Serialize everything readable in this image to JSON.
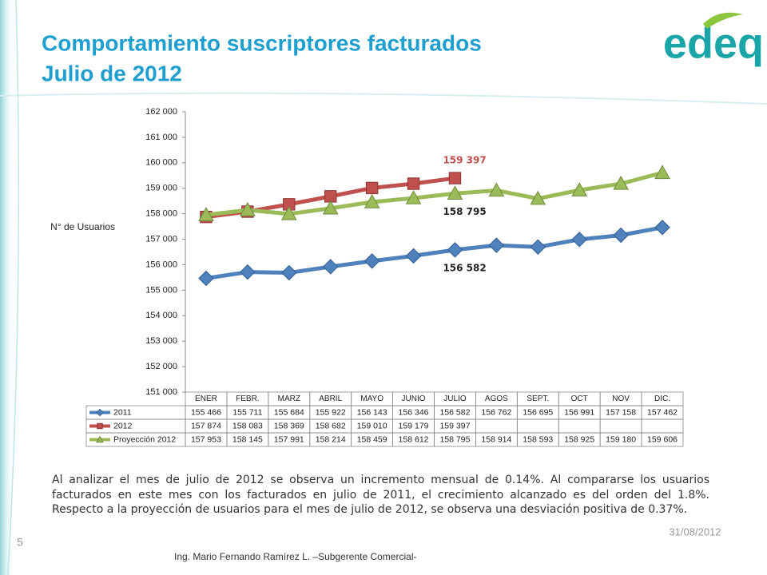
{
  "chart_data": {
    "type": "line",
    "title": "Comportamiento suscriptores facturados",
    "subtitle": "Julio de 2012",
    "ylabel": "N° de Usuarios",
    "categories": [
      "ENER",
      "FEBR.",
      "MARZ",
      "ABRIL",
      "MAYO",
      "JUNIO",
      "JULIO",
      "AGOS",
      "SEPT.",
      "OCT",
      "NOV",
      "DIC."
    ],
    "series": [
      {
        "name": "2011",
        "color": "#4f81bd",
        "marker": "diamond",
        "values": [
          155466,
          155711,
          155684,
          155922,
          156143,
          156346,
          156582,
          156762,
          156695,
          156991,
          157158,
          157462
        ],
        "value_labels": [
          "155 466",
          "155 711",
          "155 684",
          "155 922",
          "156 143",
          "156 346",
          "156 582",
          "156 762",
          "156 695",
          "156 991",
          "157 158",
          "157 462"
        ]
      },
      {
        "name": "2012",
        "color": "#c0504d",
        "marker": "square",
        "values": [
          157874,
          158083,
          158369,
          158682,
          159010,
          159179,
          159397,
          null,
          null,
          null,
          null,
          null
        ],
        "value_labels": [
          "157 874",
          "158 083",
          "158 369",
          "158 682",
          "159 010",
          "159 179",
          "159 397",
          null,
          null,
          null,
          null,
          null
        ]
      },
      {
        "name": "Proyección 2012",
        "color": "#9bbb59",
        "marker": "triangle",
        "values": [
          157953,
          158145,
          157991,
          158214,
          158459,
          158612,
          158795,
          158914,
          158593,
          158925,
          159180,
          159606
        ],
        "value_labels": [
          "157 953",
          "158 145",
          "157 991",
          "158 214",
          "158 459",
          "158 612",
          "158 795",
          "158 914",
          "158 593",
          "158 925",
          "159 180",
          "159 606"
        ]
      }
    ],
    "ylim": [
      151000,
      162000
    ],
    "yticks": [
      {
        "value": 151000,
        "label": "151 000"
      },
      {
        "value": 152000,
        "label": "152 000"
      },
      {
        "value": 153000,
        "label": "153 000"
      },
      {
        "value": 154000,
        "label": "154 000"
      },
      {
        "value": 155000,
        "label": "155 000"
      },
      {
        "value": 156000,
        "label": "156 000"
      },
      {
        "value": 157000,
        "label": "157 000"
      },
      {
        "value": 158000,
        "label": "158 000"
      },
      {
        "value": 159000,
        "label": "159 000"
      },
      {
        "value": 160000,
        "label": "160 000"
      },
      {
        "value": 161000,
        "label": "161 000"
      },
      {
        "value": 162000,
        "label": "162 000"
      }
    ],
    "grid": false
  },
  "slide": {
    "logo": "edeq",
    "paragraph": "Al analizar el mes de julio de 2012 se observa un incremento mensual de 0.14%. Al compararse los usuarios facturados en este mes con los  facturados en julio de 2011, el crecimiento alcanzado es del orden del 1.8%. Respecto a la proyección de usuarios para el mes de julio de 2012, se observa una desviación positiva de 0.37%.",
    "date": "31/08/2012",
    "page_number": "5",
    "footer": "Ing. Mario Fernando Ramírez L. –Subgerente Comercial-"
  }
}
